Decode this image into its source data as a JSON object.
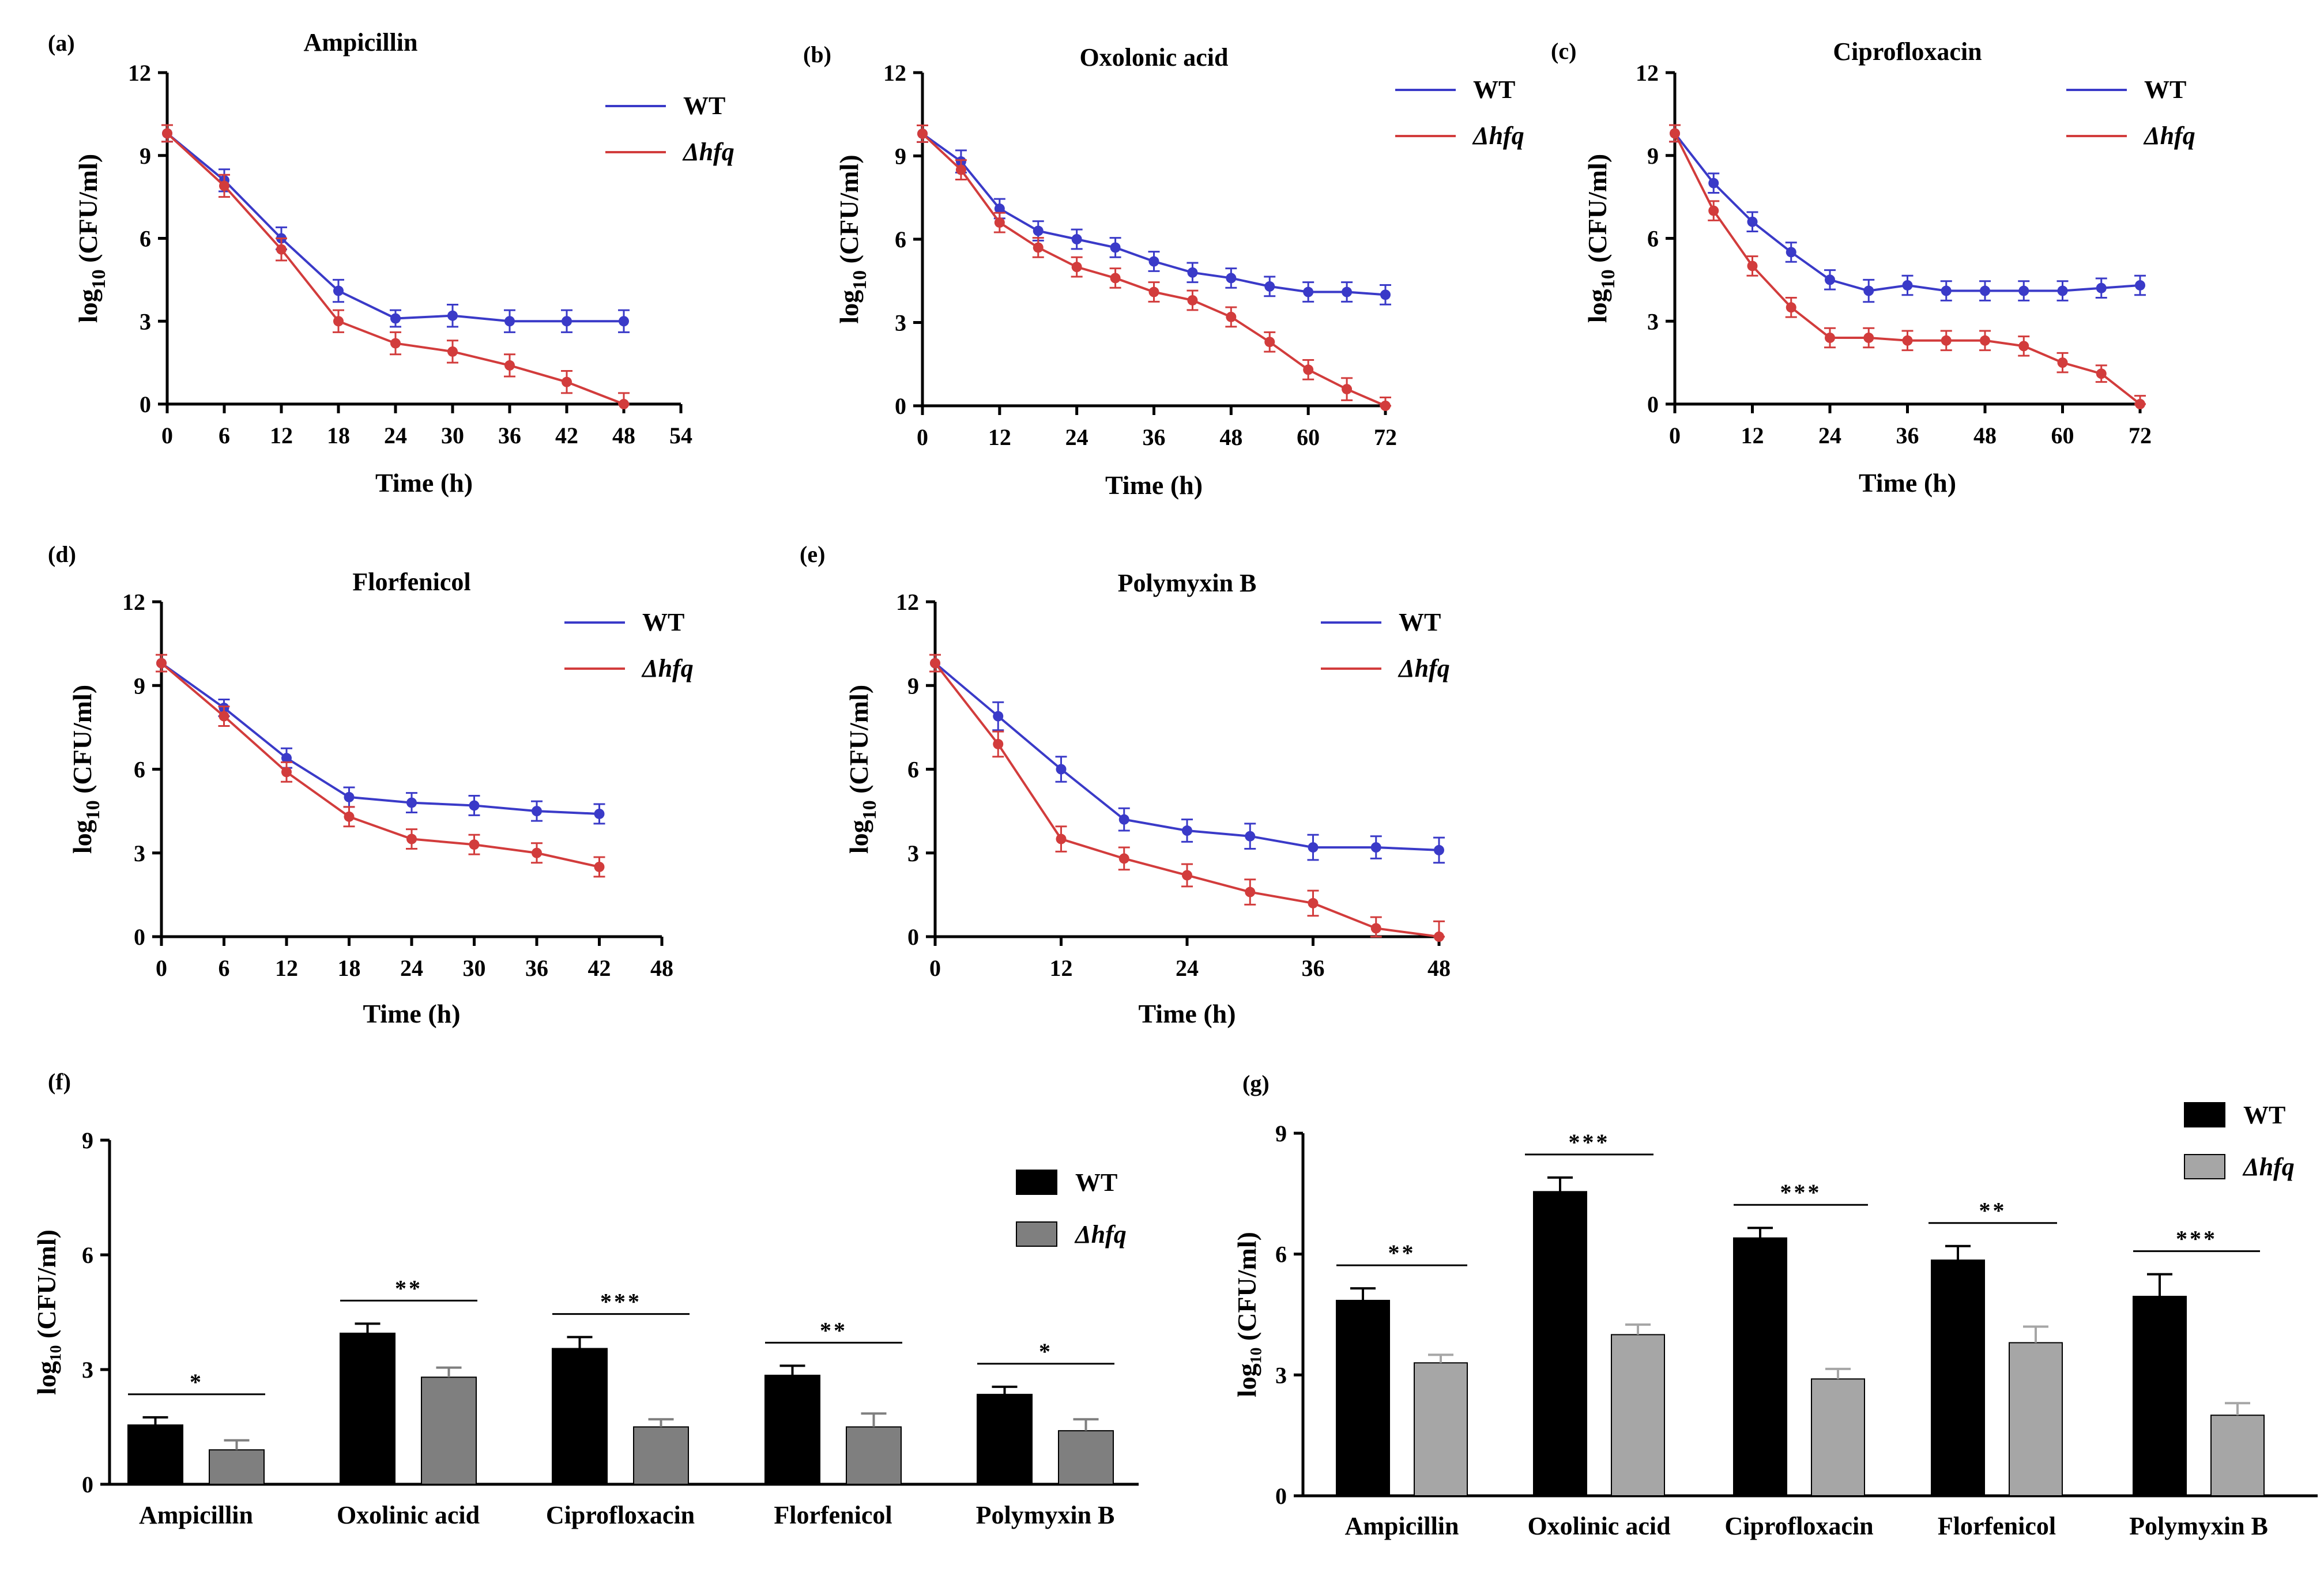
{
  "figure": {
    "background": "#ffffff"
  },
  "colors": {
    "wt_line": "#3a3ac8",
    "hfq_line": "#d23c3c",
    "wt_bar": "#000000",
    "hfq_bar_f": "#7f7f7f",
    "hfq_bar_g": "#a6a6a6"
  },
  "chart_data": [
    {
      "panel": "(a)",
      "type": "line",
      "title": "Ampicillin",
      "xlabel": "Time (h)",
      "ylabel_main": "log",
      "ylabel_sub": "10",
      "ylabel_unit": " (CFU/ml)",
      "xlim": [
        0,
        54
      ],
      "ylim": [
        0,
        12
      ],
      "xticks": [
        "0",
        "6",
        "12",
        "18",
        "24",
        "30",
        "36",
        "42",
        "48",
        "54"
      ],
      "yticks": [
        "0",
        "3",
        "6",
        "9",
        "12"
      ],
      "legend": [
        "WT",
        "Δhfq"
      ],
      "series": [
        {
          "name": "WT",
          "x": [
            0,
            6,
            12,
            18,
            24,
            30,
            36,
            42,
            48
          ],
          "y": [
            9.8,
            8.1,
            6.0,
            4.1,
            3.1,
            3.2,
            3.0,
            3.0,
            3.0
          ],
          "err": [
            0.3,
            0.4,
            0.4,
            0.4,
            0.3,
            0.4,
            0.4,
            0.4,
            0.4
          ]
        },
        {
          "name": "Δhfq",
          "x": [
            0,
            6,
            12,
            18,
            24,
            30,
            36,
            42,
            48
          ],
          "y": [
            9.8,
            7.9,
            5.6,
            3.0,
            2.2,
            1.9,
            1.4,
            0.8,
            0.0
          ],
          "err": [
            0.3,
            0.4,
            0.4,
            0.4,
            0.4,
            0.4,
            0.4,
            0.4,
            0.4
          ]
        }
      ]
    },
    {
      "panel": "(b)",
      "type": "line",
      "title": "Oxolonic acid",
      "xlabel": "Time (h)",
      "ylabel_main": "log",
      "ylabel_sub": "10",
      "ylabel_unit": " (CFU/ml)",
      "xlim": [
        0,
        72
      ],
      "ylim": [
        0,
        12
      ],
      "xticks": [
        "0",
        "12",
        "24",
        "36",
        "48",
        "60",
        "72"
      ],
      "yticks": [
        "0",
        "3",
        "6",
        "9",
        "12"
      ],
      "legend": [
        "WT",
        "Δhfq"
      ],
      "series": [
        {
          "name": "WT",
          "x": [
            0,
            6,
            12,
            18,
            24,
            30,
            36,
            42,
            48,
            54,
            60,
            66,
            72
          ],
          "y": [
            9.8,
            8.8,
            7.1,
            6.3,
            6.0,
            5.7,
            5.2,
            4.8,
            4.6,
            4.3,
            4.1,
            4.1,
            4.0
          ],
          "err": [
            0.3,
            0.4,
            0.35,
            0.35,
            0.35,
            0.35,
            0.35,
            0.35,
            0.35,
            0.35,
            0.35,
            0.35,
            0.35
          ]
        },
        {
          "name": "Δhfq",
          "x": [
            0,
            6,
            12,
            18,
            24,
            30,
            36,
            42,
            48,
            54,
            60,
            66,
            72
          ],
          "y": [
            9.8,
            8.5,
            6.6,
            5.7,
            5.0,
            4.6,
            4.1,
            3.8,
            3.2,
            2.3,
            1.3,
            0.6,
            0.0
          ],
          "err": [
            0.3,
            0.35,
            0.35,
            0.35,
            0.35,
            0.35,
            0.35,
            0.35,
            0.35,
            0.35,
            0.35,
            0.4,
            0.3
          ]
        }
      ]
    },
    {
      "panel": "(c)",
      "type": "line",
      "title": "Ciprofloxacin",
      "xlabel": "Time (h)",
      "ylabel_main": "log",
      "ylabel_sub": "10",
      "ylabel_unit": " (CFU/ml)",
      "xlim": [
        0,
        72
      ],
      "ylim": [
        0,
        12
      ],
      "xticks": [
        "0",
        "12",
        "24",
        "36",
        "48",
        "60",
        "72"
      ],
      "yticks": [
        "0",
        "3",
        "6",
        "9",
        "12"
      ],
      "legend": [
        "WT",
        "Δhfq"
      ],
      "series": [
        {
          "name": "WT",
          "x": [
            0,
            6,
            12,
            18,
            24,
            30,
            36,
            42,
            48,
            54,
            60,
            66,
            72
          ],
          "y": [
            9.8,
            8.0,
            6.6,
            5.5,
            4.5,
            4.1,
            4.3,
            4.1,
            4.1,
            4.1,
            4.1,
            4.2,
            4.3
          ],
          "err": [
            0.3,
            0.35,
            0.35,
            0.35,
            0.35,
            0.4,
            0.35,
            0.35,
            0.35,
            0.35,
            0.35,
            0.35,
            0.35
          ]
        },
        {
          "name": "Δhfq",
          "x": [
            0,
            6,
            12,
            18,
            24,
            30,
            36,
            42,
            48,
            54,
            60,
            66,
            72
          ],
          "y": [
            9.8,
            7.0,
            5.0,
            3.5,
            2.4,
            2.4,
            2.3,
            2.3,
            2.3,
            2.1,
            1.5,
            1.1,
            0.0
          ],
          "err": [
            0.3,
            0.35,
            0.35,
            0.35,
            0.35,
            0.35,
            0.35,
            0.35,
            0.35,
            0.35,
            0.35,
            0.3,
            0.3
          ]
        }
      ]
    },
    {
      "panel": "(d)",
      "type": "line",
      "title": "Florfenicol",
      "xlabel": "Time (h)",
      "ylabel_main": "log",
      "ylabel_sub": "10",
      "ylabel_unit": " (CFU/ml)",
      "xlim": [
        0,
        48
      ],
      "ylim": [
        0,
        12
      ],
      "xticks": [
        "0",
        "6",
        "12",
        "18",
        "24",
        "30",
        "36",
        "42",
        "48"
      ],
      "yticks": [
        "0",
        "3",
        "6",
        "9",
        "12"
      ],
      "legend": [
        "WT",
        "Δhfq"
      ],
      "series": [
        {
          "name": "WT",
          "x": [
            0,
            6,
            12,
            18,
            24,
            30,
            36,
            42
          ],
          "y": [
            9.8,
            8.2,
            6.4,
            5.0,
            4.8,
            4.7,
            4.5,
            4.4
          ],
          "err": [
            0.3,
            0.3,
            0.35,
            0.35,
            0.35,
            0.35,
            0.35,
            0.35
          ]
        },
        {
          "name": "Δhfq",
          "x": [
            0,
            6,
            12,
            18,
            24,
            30,
            36,
            42
          ],
          "y": [
            9.8,
            7.9,
            5.9,
            4.3,
            3.5,
            3.3,
            3.0,
            2.5
          ],
          "err": [
            0.3,
            0.35,
            0.35,
            0.35,
            0.35,
            0.35,
            0.35,
            0.35
          ]
        }
      ]
    },
    {
      "panel": "(e)",
      "type": "line",
      "title": "Polymyxin B",
      "xlabel": "Time (h)",
      "ylabel_main": "log",
      "ylabel_sub": "10",
      "ylabel_unit": " (CFU/ml)",
      "xlim": [
        0,
        48
      ],
      "ylim": [
        0,
        12
      ],
      "xticks": [
        "0",
        "12",
        "24",
        "36",
        "48"
      ],
      "yticks": [
        "0",
        "3",
        "6",
        "9",
        "12"
      ],
      "legend": [
        "WT",
        "Δhfq"
      ],
      "series": [
        {
          "name": "WT",
          "x": [
            0,
            6,
            12,
            18,
            24,
            30,
            36,
            42,
            48
          ],
          "y": [
            9.8,
            7.9,
            6.0,
            4.2,
            3.8,
            3.6,
            3.2,
            3.2,
            3.1
          ],
          "err": [
            0.3,
            0.5,
            0.45,
            0.4,
            0.4,
            0.45,
            0.45,
            0.4,
            0.45
          ]
        },
        {
          "name": "Δhfq",
          "x": [
            0,
            6,
            12,
            18,
            24,
            30,
            36,
            42,
            48
          ],
          "y": [
            9.8,
            6.9,
            3.5,
            2.8,
            2.2,
            1.6,
            1.2,
            0.3,
            0.0
          ],
          "err": [
            0.3,
            0.45,
            0.45,
            0.4,
            0.4,
            0.45,
            0.45,
            0.4,
            0.55
          ]
        }
      ]
    },
    {
      "panel": "(f)",
      "type": "bar",
      "ylabel": "log₁₀ (CFU/ml)",
      "ylim": [
        0,
        9
      ],
      "yticks": [
        "0",
        "3",
        "6",
        "9"
      ],
      "categories": [
        "Ampicillin",
        "Oxolinic acid",
        "Ciprofloxacin",
        "Florfenicol",
        "Polymyxin B"
      ],
      "legend": [
        "WT",
        "Δhfq"
      ],
      "series": [
        {
          "name": "WT",
          "values": [
            1.55,
            3.95,
            3.55,
            2.85,
            2.35
          ],
          "err": [
            0.2,
            0.25,
            0.3,
            0.25,
            0.2
          ]
        },
        {
          "name": "Δhfq",
          "values": [
            0.9,
            2.8,
            1.5,
            1.5,
            1.4
          ],
          "err": [
            0.25,
            0.25,
            0.2,
            0.35,
            0.3
          ]
        }
      ],
      "significance": [
        "*",
        "**",
        "***",
        "**",
        "*"
      ]
    },
    {
      "panel": "(g)",
      "type": "bar",
      "ylabel": "log₁₀ (CFU/ml)",
      "ylim": [
        0,
        9
      ],
      "yticks": [
        "0",
        "3",
        "6",
        "9"
      ],
      "categories": [
        "Ampicillin",
        "Oxolinic acid",
        "Ciprofloxacin",
        "Florfenicol",
        "Polymyxin B"
      ],
      "legend": [
        "WT",
        "Δhfq"
      ],
      "series": [
        {
          "name": "WT",
          "values": [
            4.85,
            7.55,
            6.4,
            5.85,
            4.95
          ],
          "err": [
            0.3,
            0.35,
            0.25,
            0.35,
            0.55
          ]
        },
        {
          "name": "Δhfq",
          "values": [
            3.3,
            4.0,
            2.9,
            3.8,
            2.0
          ],
          "err": [
            0.2,
            0.25,
            0.25,
            0.4,
            0.3
          ]
        }
      ],
      "significance": [
        "**",
        "***",
        "***",
        "**",
        "***"
      ]
    }
  ]
}
